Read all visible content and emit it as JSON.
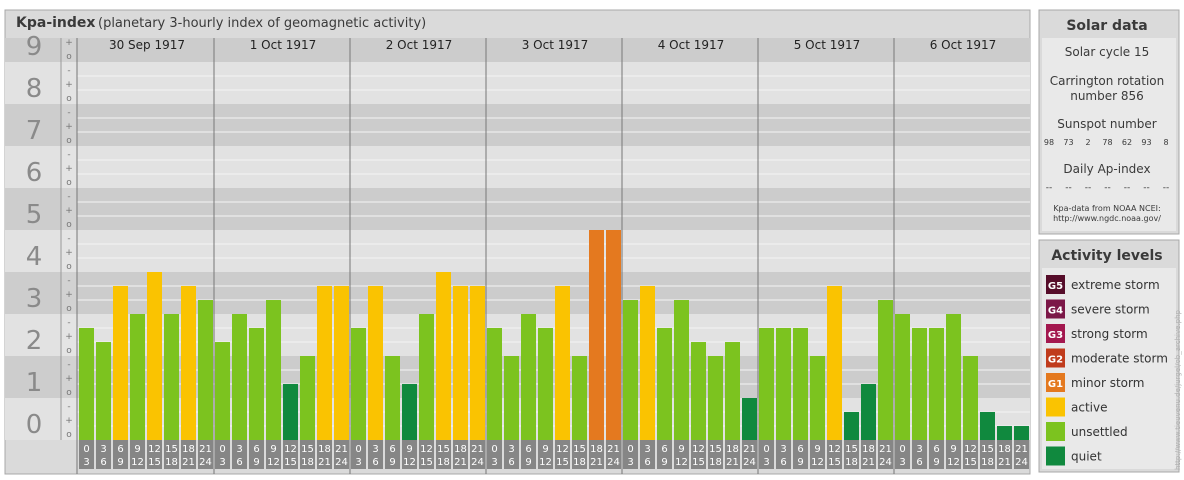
{
  "header": {
    "title": "Kpa-index",
    "subtitle": "(planetary 3-hourly index of geomagnetic activity)"
  },
  "chart_data": {
    "type": "bar",
    "y_levels": [
      "0",
      "1",
      "2",
      "3",
      "4",
      "5",
      "6",
      "7",
      "8",
      "9"
    ],
    "ylim": [
      0,
      9
    ],
    "sub_marks": [
      "o",
      "+",
      "-"
    ],
    "days": [
      "30 Sep 1917",
      "1 Oct 1917",
      "2 Oct 1917",
      "3 Oct 1917",
      "4 Oct 1917",
      "5 Oct 1917",
      "6 Oct 1917"
    ],
    "interval_starts": [
      "0",
      "3",
      "6",
      "9",
      "12",
      "15",
      "18",
      "21"
    ],
    "interval_ends": [
      "3",
      "6",
      "9",
      "12",
      "15",
      "18",
      "21",
      "24"
    ],
    "values": [
      [
        2.667,
        2.333,
        3.667,
        3.0,
        4.0,
        3.0,
        3.667,
        3.333
      ],
      [
        2.333,
        3.0,
        2.667,
        3.333,
        1.333,
        2.0,
        3.667,
        3.667
      ],
      [
        2.667,
        3.667,
        2.0,
        1.333,
        3.0,
        4.0,
        3.667,
        3.667
      ],
      [
        2.667,
        2.0,
        3.0,
        2.667,
        3.667,
        2.0,
        5.0,
        5.0
      ],
      [
        3.333,
        3.667,
        2.667,
        3.333,
        2.333,
        2.0,
        2.333,
        1.0
      ],
      [
        2.667,
        2.667,
        2.667,
        2.0,
        3.667,
        0.667,
        1.333,
        3.333
      ],
      [
        3.0,
        2.667,
        2.667,
        3.0,
        2.0,
        0.667,
        0.333,
        0.333
      ]
    ]
  },
  "solar": {
    "title": "Solar data",
    "cycle": "Solar cycle 15",
    "carrington_line1": "Carrington rotation",
    "carrington_line2": "number 856",
    "sunspot_label": "Sunspot number",
    "sunspots": [
      "98",
      "73",
      "2",
      "78",
      "62",
      "93",
      "8"
    ],
    "ap_label": "Daily Ap-index",
    "ap_values": [
      "--",
      "--",
      "--",
      "--",
      "--",
      "--",
      "--"
    ],
    "source_line1": "Kpa-data from NOAA NCEI:",
    "source_line2": "http://www.ngdc.noaa.gov/"
  },
  "activity": {
    "title": "Activity levels",
    "items": [
      {
        "badge": "G5",
        "label": "extreme storm",
        "color": "#560d2a"
      },
      {
        "badge": "G4",
        "label": "severe storm",
        "color": "#7c1848"
      },
      {
        "badge": "G3",
        "label": "strong storm",
        "color": "#a3184f"
      },
      {
        "badge": "G2",
        "label": "moderate storm",
        "color": "#c03b1c"
      },
      {
        "badge": "G1",
        "label": "minor storm",
        "color": "#e4791f"
      },
      {
        "badge": "",
        "label": "active",
        "color": "#fac301"
      },
      {
        "badge": "",
        "label": "unsettled",
        "color": "#7cc31f"
      },
      {
        "badge": "",
        "label": "quiet",
        "color": "#10893e"
      }
    ]
  },
  "watermark": "http://www.tieuvenu.de/jurgel/ob_archive.php",
  "colors": {
    "quiet": "#10893e",
    "unsettled": "#7cc31f",
    "active": "#fac301",
    "minor_storm": "#e4791f"
  }
}
